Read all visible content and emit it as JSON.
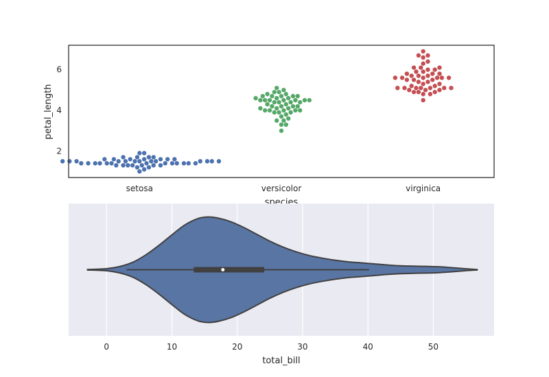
{
  "chart_data": [
    {
      "type": "scatter",
      "subtype": "swarm",
      "xlabel": "species",
      "ylabel": "petal_length",
      "categories": [
        "setosa",
        "versicolor",
        "virginica"
      ],
      "ylim": [
        0.7,
        7.2
      ],
      "yticks": [
        2,
        4,
        6
      ],
      "grid": false,
      "style": "white",
      "colors": [
        "#4c72b0",
        "#55a868",
        "#c44e52"
      ],
      "series": [
        {
          "category": "setosa",
          "values": [
            1.4,
            1.4,
            1.3,
            1.5,
            1.4,
            1.7,
            1.4,
            1.5,
            1.4,
            1.5,
            1.5,
            1.6,
            1.4,
            1.1,
            1.2,
            1.5,
            1.3,
            1.4,
            1.7,
            1.5,
            1.7,
            1.5,
            1.0,
            1.7,
            1.9,
            1.6,
            1.6,
            1.5,
            1.4,
            1.6,
            1.6,
            1.5,
            1.5,
            1.4,
            1.5,
            1.2,
            1.3,
            1.4,
            1.3,
            1.5,
            1.3,
            1.3,
            1.3,
            1.6,
            1.9,
            1.4,
            1.6,
            1.4,
            1.5,
            1.4
          ]
        },
        {
          "category": "versicolor",
          "values": [
            4.7,
            4.5,
            4.9,
            4.0,
            4.6,
            4.5,
            4.7,
            3.3,
            4.6,
            3.9,
            3.5,
            4.2,
            4.0,
            4.7,
            3.6,
            4.4,
            4.5,
            4.1,
            4.5,
            3.9,
            4.8,
            4.0,
            4.9,
            4.7,
            4.3,
            4.4,
            4.8,
            5.0,
            4.5,
            3.5,
            3.8,
            3.7,
            3.9,
            5.1,
            4.5,
            4.5,
            4.7,
            4.4,
            4.1,
            4.0,
            4.4,
            4.6,
            4.0,
            3.3,
            4.2,
            4.2,
            4.2,
            4.3,
            3.0,
            4.1
          ]
        },
        {
          "category": "virginica",
          "values": [
            6.0,
            5.1,
            5.9,
            5.6,
            5.8,
            6.6,
            4.5,
            6.3,
            5.8,
            6.1,
            5.1,
            5.3,
            5.5,
            5.0,
            5.1,
            5.3,
            5.5,
            6.7,
            6.9,
            5.0,
            5.7,
            4.9,
            6.7,
            4.9,
            5.7,
            6.0,
            4.8,
            4.9,
            5.6,
            5.8,
            6.1,
            6.4,
            5.6,
            5.1,
            5.6,
            6.1,
            5.6,
            5.5,
            4.8,
            5.4,
            5.6,
            5.1,
            5.1,
            5.9,
            5.7,
            5.2,
            5.0,
            5.2,
            5.4,
            5.1
          ]
        }
      ]
    },
    {
      "type": "violin",
      "xlabel": "total_bill",
      "xlim": [
        -5.8,
        59.3
      ],
      "xticks": [
        0,
        10,
        20,
        30,
        40,
        50
      ],
      "grid": true,
      "style": "darkgrid",
      "color": "#4c72b0",
      "box": {
        "min": 3.07,
        "q1": 13.35,
        "median": 17.8,
        "q3": 24.13,
        "whisker_high": 40.17
      },
      "kde_extent": [
        -2.9,
        56.7
      ],
      "density": [
        [
          -2.9,
          0.005
        ],
        [
          0,
          0.02
        ],
        [
          2,
          0.06
        ],
        [
          4,
          0.14
        ],
        [
          6,
          0.28
        ],
        [
          8,
          0.46
        ],
        [
          10,
          0.66
        ],
        [
          12,
          0.85
        ],
        [
          14,
          0.97
        ],
        [
          15.5,
          1.0
        ],
        [
          17,
          0.98
        ],
        [
          19,
          0.91
        ],
        [
          21,
          0.8
        ],
        [
          23,
          0.67
        ],
        [
          25,
          0.54
        ],
        [
          27,
          0.43
        ],
        [
          29,
          0.34
        ],
        [
          31,
          0.27
        ],
        [
          33,
          0.22
        ],
        [
          35,
          0.18
        ],
        [
          37,
          0.15
        ],
        [
          39,
          0.13
        ],
        [
          41,
          0.11
        ],
        [
          43,
          0.09
        ],
        [
          45,
          0.075
        ],
        [
          47,
          0.068
        ],
        [
          49,
          0.063
        ],
        [
          51,
          0.055
        ],
        [
          53,
          0.038
        ],
        [
          55,
          0.018
        ],
        [
          56.7,
          0.005
        ]
      ]
    }
  ]
}
